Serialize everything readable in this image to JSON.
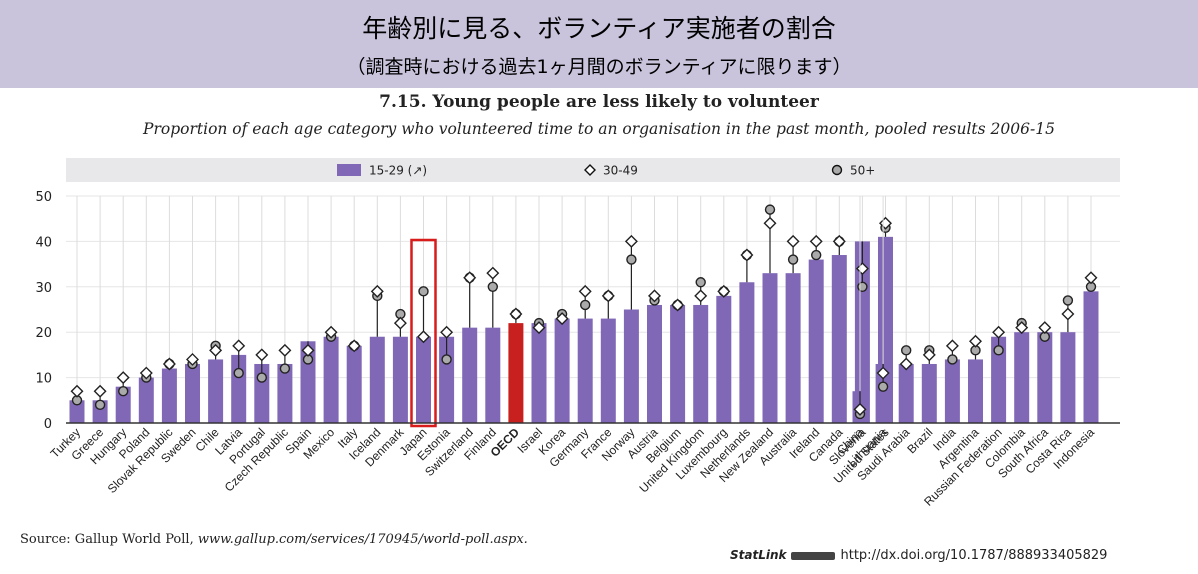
{
  "banner": {
    "title": "年齢別に見る、ボランティア実施者の割合",
    "subtitle": "（調査時における過去1ヶ月間のボランティアに限ります）"
  },
  "colors": {
    "bar": "#8068b6",
    "bar_highlight": "#c8201e",
    "highlight_box": "#d81b1b",
    "legend_bg": "#e8e7ea",
    "banner_bg": "#c9c3dc"
  },
  "chart_data": {
    "type": "bar",
    "title": "7.15.  Young people are less likely to volunteer",
    "subtitle": "Proportion of each age category who volunteered time to an organisation in the past month, pooled results 2006-15",
    "ylim": [
      0,
      50
    ],
    "yticks": [
      0,
      10,
      20,
      30,
      40,
      50
    ],
    "legend": [
      {
        "name": "15-29 (↗)",
        "marker": "bar"
      },
      {
        "name": "30-49",
        "marker": "diamond"
      },
      {
        "name": "50+",
        "marker": "circle"
      }
    ],
    "legend_position": "top",
    "highlight_category": "Japan",
    "bold_category": "OECD",
    "groups": [
      {
        "categories": [
          "Turkey",
          "Greece",
          "Hungary",
          "Poland",
          "Slovak Republic",
          "Sweden",
          "Chile",
          "Latvia",
          "Portugal",
          "Czech Republic",
          "Spain",
          "Mexico",
          "Italy",
          "Iceland",
          "Denmark",
          "Japan",
          "Estonia",
          "Switzerland",
          "Finland",
          "OECD",
          "Israel",
          "Korea",
          "Germany",
          "France",
          "Norway",
          "Austria",
          "Belgium",
          "United Kingdom",
          "Luxembourg",
          "Netherlands",
          "New Zealand",
          "Australia",
          "Ireland",
          "Canada",
          "Slovenia",
          "United States"
        ],
        "series": [
          {
            "name": "15-29",
            "values": [
              5,
              5,
              8,
              10,
              12,
              13,
              14,
              15,
              13,
              13,
              18,
              19,
              17,
              19,
              19,
              19,
              19,
              21,
              21,
              22,
              22,
              23,
              23,
              23,
              25,
              26,
              26,
              26,
              28,
              31,
              33,
              33,
              36,
              37,
              40,
              41
            ]
          },
          {
            "name": "30-49",
            "values": [
              7,
              7,
              10,
              11,
              13,
              14,
              16,
              17,
              15,
              16,
              16,
              20,
              17,
              29,
              22,
              19,
              20,
              32,
              33,
              24,
              21,
              23,
              29,
              28,
              40,
              28,
              26,
              28,
              29,
              37,
              44,
              40,
              40,
              40,
              34,
              44
            ]
          },
          {
            "name": "50+",
            "values": [
              5,
              4,
              7,
              10,
              13,
              13,
              17,
              11,
              10,
              12,
              14,
              19,
              17,
              28,
              24,
              29,
              14,
              32,
              30,
              24,
              22,
              24,
              26,
              28,
              36,
              27,
              26,
              31,
              29,
              37,
              47,
              36,
              37,
              40,
              30,
              43
            ]
          }
        ]
      },
      {
        "categories": [
          "China",
          "Lithuania",
          "Saudi Arabia",
          "Brazil",
          "India",
          "Argentina",
          "Russian Federation",
          "Colombia",
          "South Africa",
          "Costa Rica",
          "Indonesia"
        ],
        "series": [
          {
            "name": "15-29",
            "values": [
              7,
              13,
              13,
              13,
              14,
              14,
              19,
              20,
              20,
              20,
              29
            ]
          },
          {
            "name": "30-49",
            "values": [
              3,
              11,
              13,
              15,
              17,
              18,
              20,
              21,
              21,
              24,
              32
            ]
          },
          {
            "name": "50+",
            "values": [
              2,
              8,
              16,
              16,
              14,
              16,
              16,
              22,
              19,
              27,
              30
            ]
          }
        ]
      }
    ]
  },
  "footer": {
    "source_label": "Source:  Gallup World Poll, ",
    "source_url": "www.gallup.com/services/170945/world-poll.aspx.",
    "statlink_label": "StatLink",
    "statlink_url": "http://dx.doi.org/10.1787/888933405829"
  }
}
